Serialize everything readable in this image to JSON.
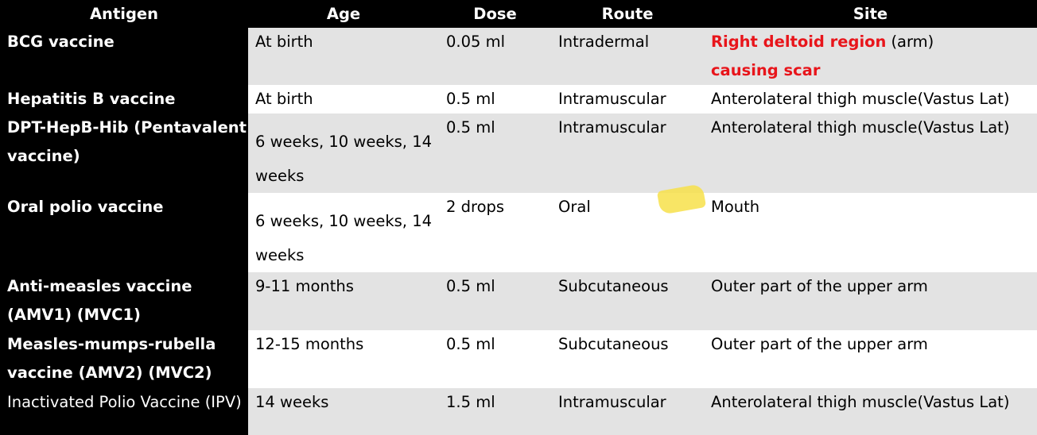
{
  "table": {
    "header": [
      "Antigen",
      "Age",
      "Dose",
      "Route",
      "Site"
    ],
    "rows": [
      {
        "antigen": "BCG vaccine",
        "age": "At birth",
        "dose": "0.05 ml",
        "route": "Intradermal",
        "site": [
          {
            "text": "Right deltoid region",
            "emphasis": true
          },
          {
            "text": "(arm)",
            "emphasis": false
          },
          {
            "text": "causing scar",
            "emphasis": true
          }
        ]
      },
      {
        "antigen": "Hepatitis B vaccine",
        "age": "At birth",
        "dose": "0.5 ml",
        "route": "Intramuscular",
        "site": "Anterolateral thigh muscle(Vastus Lat)"
      },
      {
        "antigen": "DPT-HepB-Hib (Pentavalent vaccine)",
        "age": "6 weeks, 10 weeks, 14 weeks",
        "dose": "0.5 ml",
        "route": "Intramuscular",
        "site": "Anterolateral thigh muscle(Vastus Lat)"
      },
      {
        "antigen": "Oral polio vaccine",
        "age": "6 weeks, 10 weeks, 14 weeks",
        "dose": "2 drops",
        "route": "Oral",
        "site": "Mouth"
      },
      {
        "antigen": "Anti-measles vaccine (AMV1) (MVC1)",
        "age": "9-11 months",
        "dose": "0.5 ml",
        "route": "Subcutaneous",
        "site": "Outer part of the upper arm"
      },
      {
        "antigen": "Measles-mumps-rubella vaccine (AMV2) (MVC2)",
        "age": "12-15 months",
        "dose": "0.5 ml",
        "route": "Subcutaneous",
        "site": "Outer part of the upper arm"
      },
      {
        "antigen": "Inactivated Polio Vaccine (IPV)",
        "age": "14 weeks",
        "dose": "1.5 ml",
        "route": "Intramuscular",
        "site": "Anterolateral thigh muscle(Vastus Lat)"
      }
    ]
  }
}
